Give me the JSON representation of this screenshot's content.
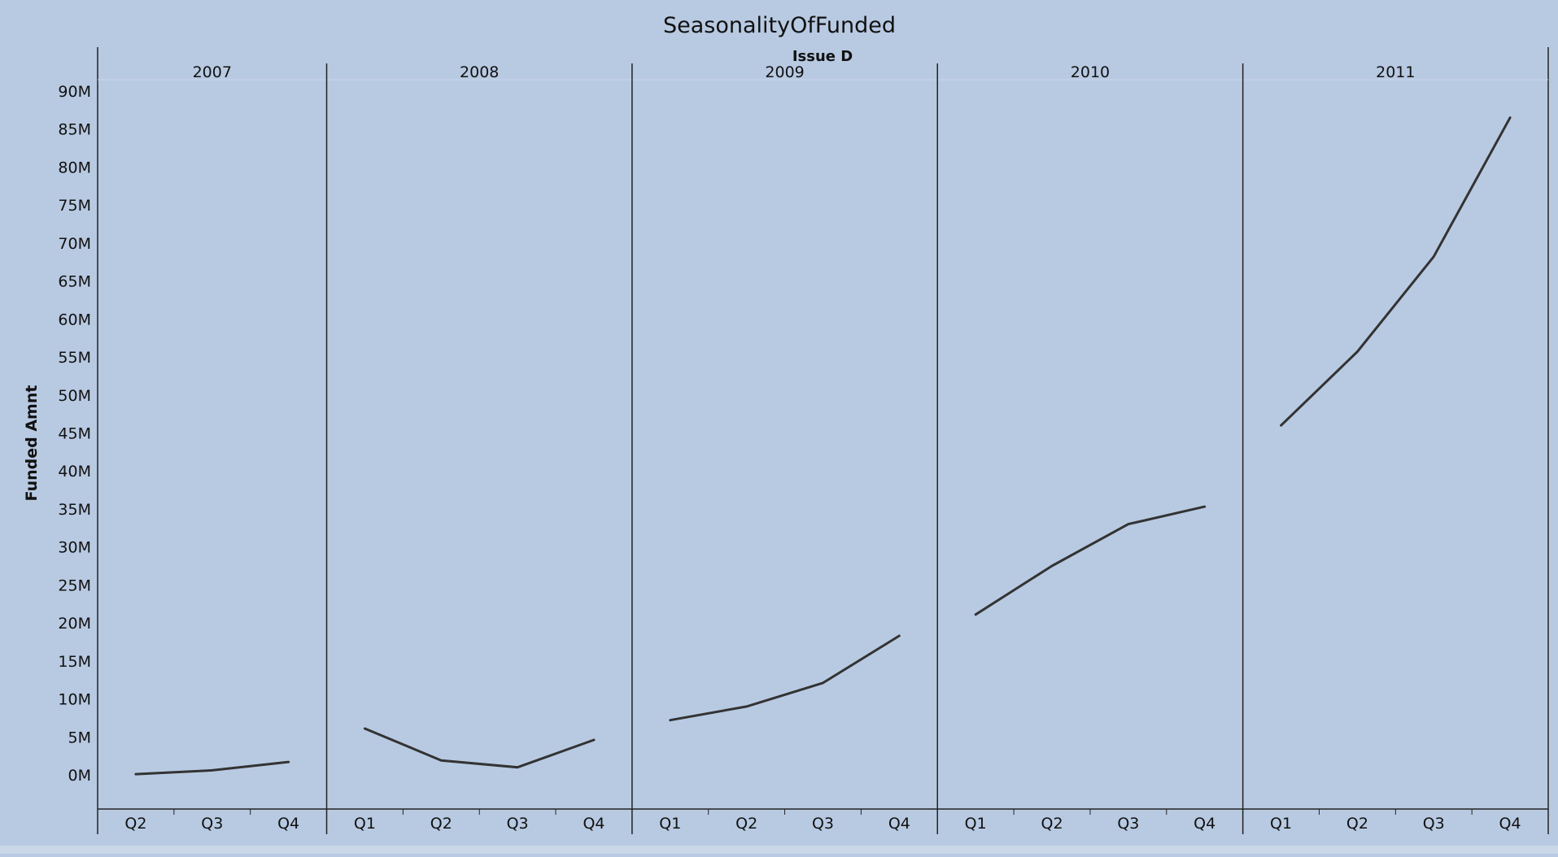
{
  "chart_data": {
    "type": "line",
    "title": "SeasonalityOfFunded",
    "column_header": "Issue D",
    "ylabel": "Funded Amnt",
    "ylim": [
      -4500000,
      90000000
    ],
    "yticks": [
      0,
      5000000,
      10000000,
      15000000,
      20000000,
      25000000,
      30000000,
      35000000,
      40000000,
      45000000,
      50000000,
      55000000,
      60000000,
      65000000,
      70000000,
      75000000,
      80000000,
      85000000,
      90000000
    ],
    "ytick_labels": [
      "0M",
      "5M",
      "10M",
      "15M",
      "20M",
      "25M",
      "30M",
      "35M",
      "40M",
      "45M",
      "50M",
      "55M",
      "60M",
      "65M",
      "70M",
      "75M",
      "80M",
      "85M",
      "90M"
    ],
    "grid": false,
    "line_color": "#333333",
    "background_color": "#b8cae2",
    "panels": [
      {
        "year": "2007",
        "quarters": [
          "Q2",
          "Q3",
          "Q4"
        ],
        "values": [
          100000,
          600000,
          1700000
        ]
      },
      {
        "year": "2008",
        "quarters": [
          "Q1",
          "Q2",
          "Q3",
          "Q4"
        ],
        "values": [
          6100000,
          1900000,
          1000000,
          4600000
        ]
      },
      {
        "year": "2009",
        "quarters": [
          "Q1",
          "Q2",
          "Q3",
          "Q4"
        ],
        "values": [
          7200000,
          9000000,
          12100000,
          18300000
        ]
      },
      {
        "year": "2010",
        "quarters": [
          "Q1",
          "Q2",
          "Q3",
          "Q4"
        ],
        "values": [
          21100000,
          27500000,
          33000000,
          35300000
        ]
      },
      {
        "year": "2011",
        "quarters": [
          "Q1",
          "Q2",
          "Q3",
          "Q4"
        ],
        "values": [
          46000000,
          55700000,
          68200000,
          86500000
        ]
      }
    ]
  }
}
